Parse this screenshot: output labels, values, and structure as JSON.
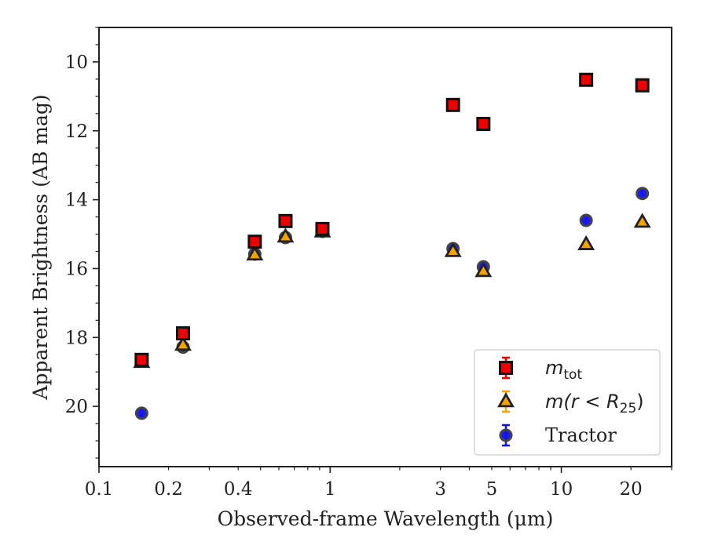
{
  "chart_data": {
    "type": "scatter",
    "xlabel": "Observed-frame Wavelength (μm)",
    "ylabel": "Apparent Brightness (AB mag)",
    "xscale": "log",
    "xlim": [
      0.1,
      30
    ],
    "ylim": [
      21.75,
      9.0
    ],
    "y_inverted": true,
    "xticks": [
      {
        "value": 0.1,
        "label": "0.1"
      },
      {
        "value": 0.2,
        "label": "0.2"
      },
      {
        "value": 0.4,
        "label": "0.4"
      },
      {
        "value": 1,
        "label": "1"
      },
      {
        "value": 3,
        "label": "3"
      },
      {
        "value": 5,
        "label": "5"
      },
      {
        "value": 10,
        "label": "10"
      },
      {
        "value": 20,
        "label": "20"
      }
    ],
    "yticks": [
      {
        "value": 10,
        "label": "10"
      },
      {
        "value": 12,
        "label": "12"
      },
      {
        "value": 14,
        "label": "14"
      },
      {
        "value": 16,
        "label": "16"
      },
      {
        "value": 18,
        "label": "18"
      },
      {
        "value": 20,
        "label": "20"
      }
    ],
    "grid": false,
    "legend_position": "lower-right",
    "series": [
      {
        "name": "m_tot",
        "legend_label": "m",
        "legend_sub": "tot",
        "marker": "square",
        "color": "#ee0000",
        "points": [
          {
            "x": 0.153,
            "y": 18.65
          },
          {
            "x": 0.231,
            "y": 17.88
          },
          {
            "x": 0.472,
            "y": 15.22
          },
          {
            "x": 0.641,
            "y": 14.62
          },
          {
            "x": 0.926,
            "y": 14.85
          },
          {
            "x": 3.4,
            "y": 11.25
          },
          {
            "x": 4.6,
            "y": 11.8
          },
          {
            "x": 12.8,
            "y": 10.52
          },
          {
            "x": 22.4,
            "y": 10.68
          }
        ]
      },
      {
        "name": "m(r < R_25)",
        "legend_label": "m(r < R",
        "legend_sub": "25",
        "legend_suffix": ")",
        "marker": "triangle",
        "color": "#f5a300",
        "points": [
          {
            "x": 0.153,
            "y": 18.72
          },
          {
            "x": 0.231,
            "y": 18.22
          },
          {
            "x": 0.472,
            "y": 15.6
          },
          {
            "x": 0.641,
            "y": 15.08
          },
          {
            "x": 0.926,
            "y": 14.93
          },
          {
            "x": 3.4,
            "y": 15.5
          },
          {
            "x": 4.6,
            "y": 16.08
          },
          {
            "x": 12.8,
            "y": 15.3
          },
          {
            "x": 22.4,
            "y": 14.65
          }
        ]
      },
      {
        "name": "Tractor",
        "legend_label": "Tractor",
        "marker": "circle",
        "color": "#1010ee",
        "points": [
          {
            "x": 0.153,
            "y": 20.2
          },
          {
            "x": 0.231,
            "y": 18.28
          },
          {
            "x": 0.472,
            "y": 15.58
          },
          {
            "x": 0.641,
            "y": 15.1
          },
          {
            "x": 0.926,
            "y": 14.92
          },
          {
            "x": 3.4,
            "y": 15.42
          },
          {
            "x": 4.6,
            "y": 15.95
          },
          {
            "x": 12.8,
            "y": 14.6
          },
          {
            "x": 22.4,
            "y": 13.82
          }
        ]
      }
    ]
  }
}
